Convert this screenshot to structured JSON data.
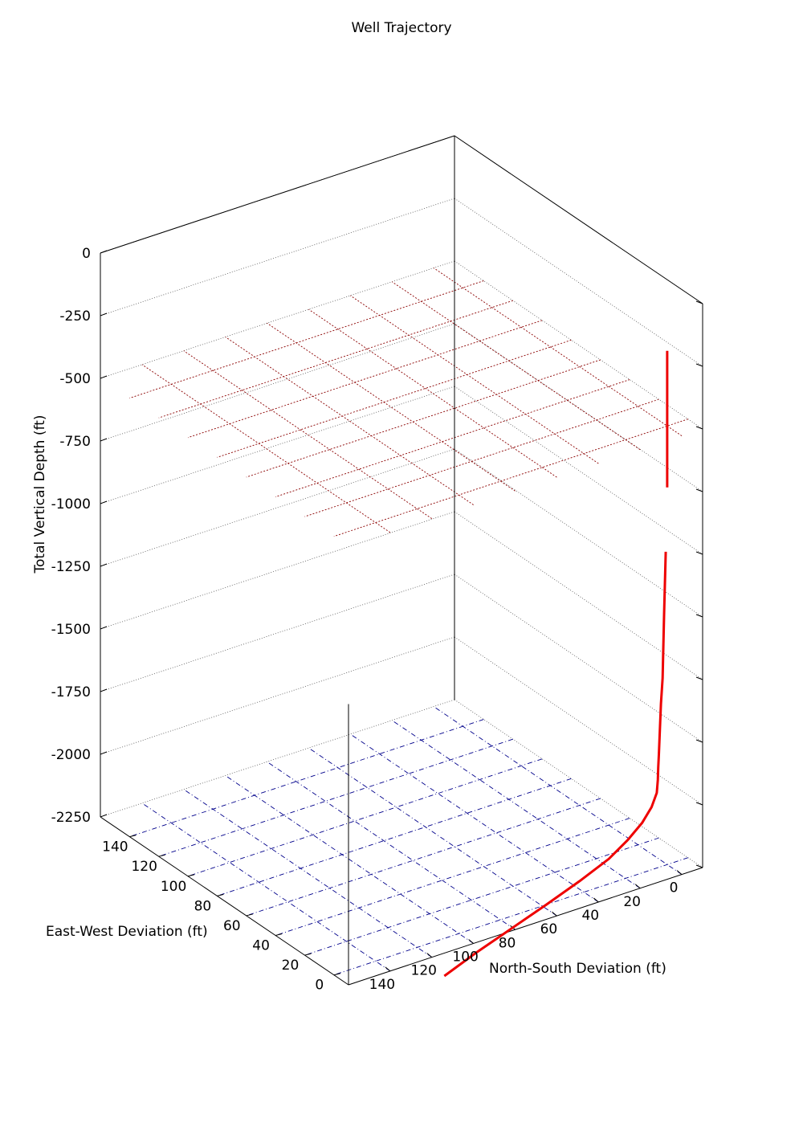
{
  "chart_data": {
    "type": "line3d",
    "title": "Well Trajectory",
    "xlabel": "North-South Deviation (ft)",
    "ylabel": "East-West Deviation (ft)",
    "zlabel": "Total Vertical Depth (ft)",
    "x_ticks": [
      "0",
      "20",
      "40",
      "60",
      "80",
      "100",
      "120",
      "140"
    ],
    "y_ticks": [
      "0",
      "20",
      "40",
      "60",
      "80",
      "100",
      "120",
      "140"
    ],
    "z_ticks": [
      "0",
      "-250",
      "-500",
      "-750",
      "-1000",
      "-1250",
      "-1500",
      "-1750",
      "-2000",
      "-2250"
    ],
    "xlim": [
      -10,
      160
    ],
    "ylim": [
      -10,
      160
    ],
    "zlim": [
      -2250,
      0
    ],
    "grid_planes": [
      {
        "name": "upper-plane",
        "z": -500,
        "color": "#8b0000"
      },
      {
        "name": "bottom-plane",
        "z": -2250,
        "color": "#00008b"
      }
    ],
    "series": [
      {
        "color": "#ee0000",
        "x": [
          0,
          0,
          0,
          0.7,
          1.5,
          2.2,
          3,
          3.5,
          4,
          4.3,
          4.5,
          5,
          7.5,
          12,
          19,
          28,
          42,
          58,
          75,
          92,
          107
        ],
        "y": [
          0,
          0,
          0,
          0,
          0,
          0,
          0,
          0,
          0,
          0,
          0,
          0,
          0,
          0,
          0,
          0,
          0,
          0,
          0,
          0,
          0
        ],
        "z": [
          -200,
          -500,
          -745,
          -1000,
          -1250,
          -1500,
          -1600,
          -1700,
          -1800,
          -1850,
          -1900,
          -1950,
          -2000,
          -2050,
          -2100,
          -2150,
          -2200,
          -2250,
          -2300,
          -2350,
          -2400
        ]
      }
    ]
  }
}
